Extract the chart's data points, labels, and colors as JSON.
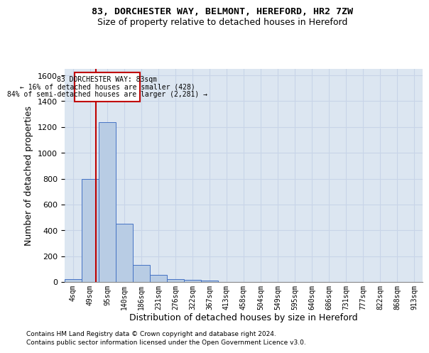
{
  "title1": "83, DORCHESTER WAY, BELMONT, HEREFORD, HR2 7ZW",
  "title2": "Size of property relative to detached houses in Hereford",
  "xlabel": "Distribution of detached houses by size in Hereford",
  "ylabel": "Number of detached properties",
  "footnote1": "Contains HM Land Registry data © Crown copyright and database right 2024.",
  "footnote2": "Contains public sector information licensed under the Open Government Licence v3.0.",
  "bar_labels": [
    "4sqm",
    "49sqm",
    "95sqm",
    "140sqm",
    "186sqm",
    "231sqm",
    "276sqm",
    "322sqm",
    "367sqm",
    "413sqm",
    "458sqm",
    "504sqm",
    "549sqm",
    "595sqm",
    "640sqm",
    "686sqm",
    "731sqm",
    "777sqm",
    "822sqm",
    "868sqm",
    "913sqm"
  ],
  "bar_values": [
    20,
    800,
    1240,
    450,
    130,
    55,
    20,
    15,
    10,
    2,
    0,
    0,
    0,
    0,
    0,
    0,
    0,
    0,
    0,
    0,
    0
  ],
  "bar_color": "#b8cce4",
  "bar_edge_color": "#4472c4",
  "grid_color": "#c8d4e8",
  "background_color": "#dce6f1",
  "ylim_max": 1650,
  "yticks": [
    0,
    200,
    400,
    600,
    800,
    1000,
    1200,
    1400,
    1600
  ],
  "vline_color": "#c00000",
  "vline_x_index": 1.35,
  "ann_line1": "83 DORCHESTER WAY: 83sqm",
  "ann_line2": "← 16% of detached houses are smaller (428)",
  "ann_line3": "84% of semi-detached houses are larger (2,281) →",
  "ann_border_color": "#c00000",
  "ann_facecolor": "white"
}
